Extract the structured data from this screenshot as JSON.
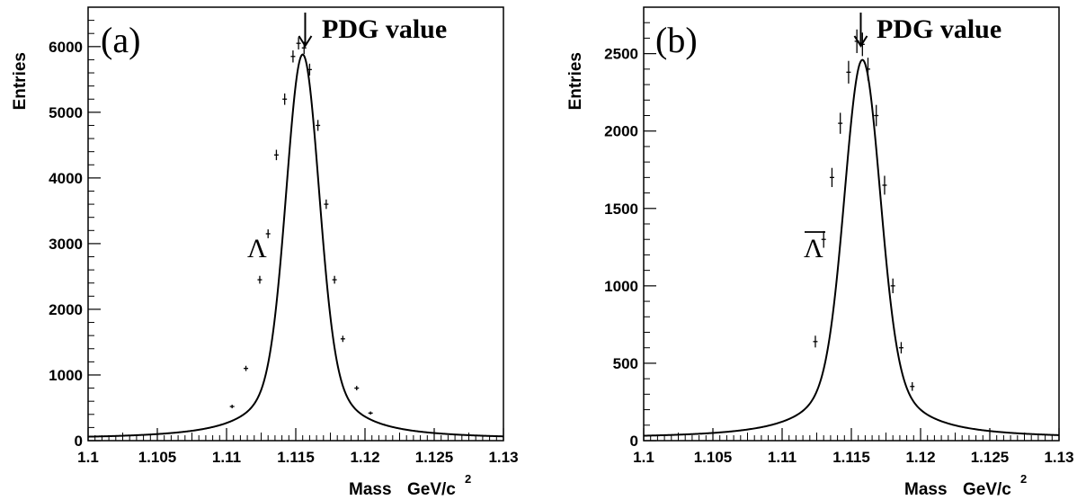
{
  "chart_data": [
    {
      "type": "line",
      "panel_label": "(a)",
      "annotation": "PDG value",
      "particle_label": "Λ",
      "particle_overline": false,
      "pdg_mass": 1.11568,
      "xlabel": "Mass",
      "xlabel_unit": "GeV/c",
      "xlabel_unit_sup": "2",
      "ylabel": "Entries",
      "xlim": [
        1.1,
        1.13
      ],
      "ylim": [
        0,
        6600
      ],
      "x_ticks": [
        1.1,
        1.105,
        1.11,
        1.115,
        1.12,
        1.125,
        1.13
      ],
      "x_tick_labels": [
        "1.1",
        "1.105",
        "1.11",
        "1.115",
        "1.12",
        "1.125",
        "1.13"
      ],
      "y_ticks": [
        0,
        1000,
        2000,
        3000,
        4000,
        5000,
        6000
      ],
      "y_tick_labels": [
        "0",
        "1000",
        "2000",
        "3000",
        "4000",
        "5000",
        "6000"
      ],
      "fit": {
        "mean": 1.1155,
        "peak": 5880,
        "sigma_core": 0.00115,
        "background": 25
      },
      "series": [
        {
          "style": "data",
          "x": [
            1.1104,
            1.1114,
            1.1124,
            1.113,
            1.1136,
            1.1142,
            1.1148,
            1.1152,
            1.1156,
            1.116,
            1.1166,
            1.1172,
            1.1178,
            1.1184,
            1.1194,
            1.1204
          ],
          "y": [
            520,
            1100,
            2450,
            3150,
            4350,
            5200,
            5850,
            6050,
            5980,
            5650,
            4800,
            3600,
            2450,
            1550,
            800,
            420
          ]
        }
      ]
    },
    {
      "type": "line",
      "panel_label": "(b)",
      "annotation": "PDG value",
      "particle_label": "Λ",
      "particle_overline": true,
      "pdg_mass": 1.11568,
      "xlabel": "Mass",
      "xlabel_unit": "GeV/c",
      "xlabel_unit_sup": "2",
      "ylabel": "Entries",
      "xlim": [
        1.1,
        1.13
      ],
      "ylim": [
        0,
        2800
      ],
      "x_ticks": [
        1.1,
        1.105,
        1.11,
        1.115,
        1.12,
        1.125,
        1.13
      ],
      "x_tick_labels": [
        "1.1",
        "1.105",
        "1.11",
        "1.115",
        "1.12",
        "1.125",
        "1.13"
      ],
      "y_ticks": [
        0,
        500,
        1000,
        1500,
        2000,
        2500
      ],
      "y_tick_labels": [
        "0",
        "500",
        "1000",
        "1500",
        "2000",
        "2500"
      ],
      "fit": {
        "mean": 1.1158,
        "peak": 2460,
        "sigma_core": 0.00125,
        "background": 15
      },
      "series": [
        {
          "style": "data",
          "x": [
            1.1124,
            1.113,
            1.1136,
            1.1142,
            1.1148,
            1.1154,
            1.1158,
            1.1162,
            1.1168,
            1.1174,
            1.118,
            1.1186,
            1.1194
          ],
          "y": [
            640,
            1300,
            1700,
            2050,
            2380,
            2580,
            2560,
            2400,
            2100,
            1650,
            1000,
            600,
            350
          ]
        }
      ]
    }
  ]
}
